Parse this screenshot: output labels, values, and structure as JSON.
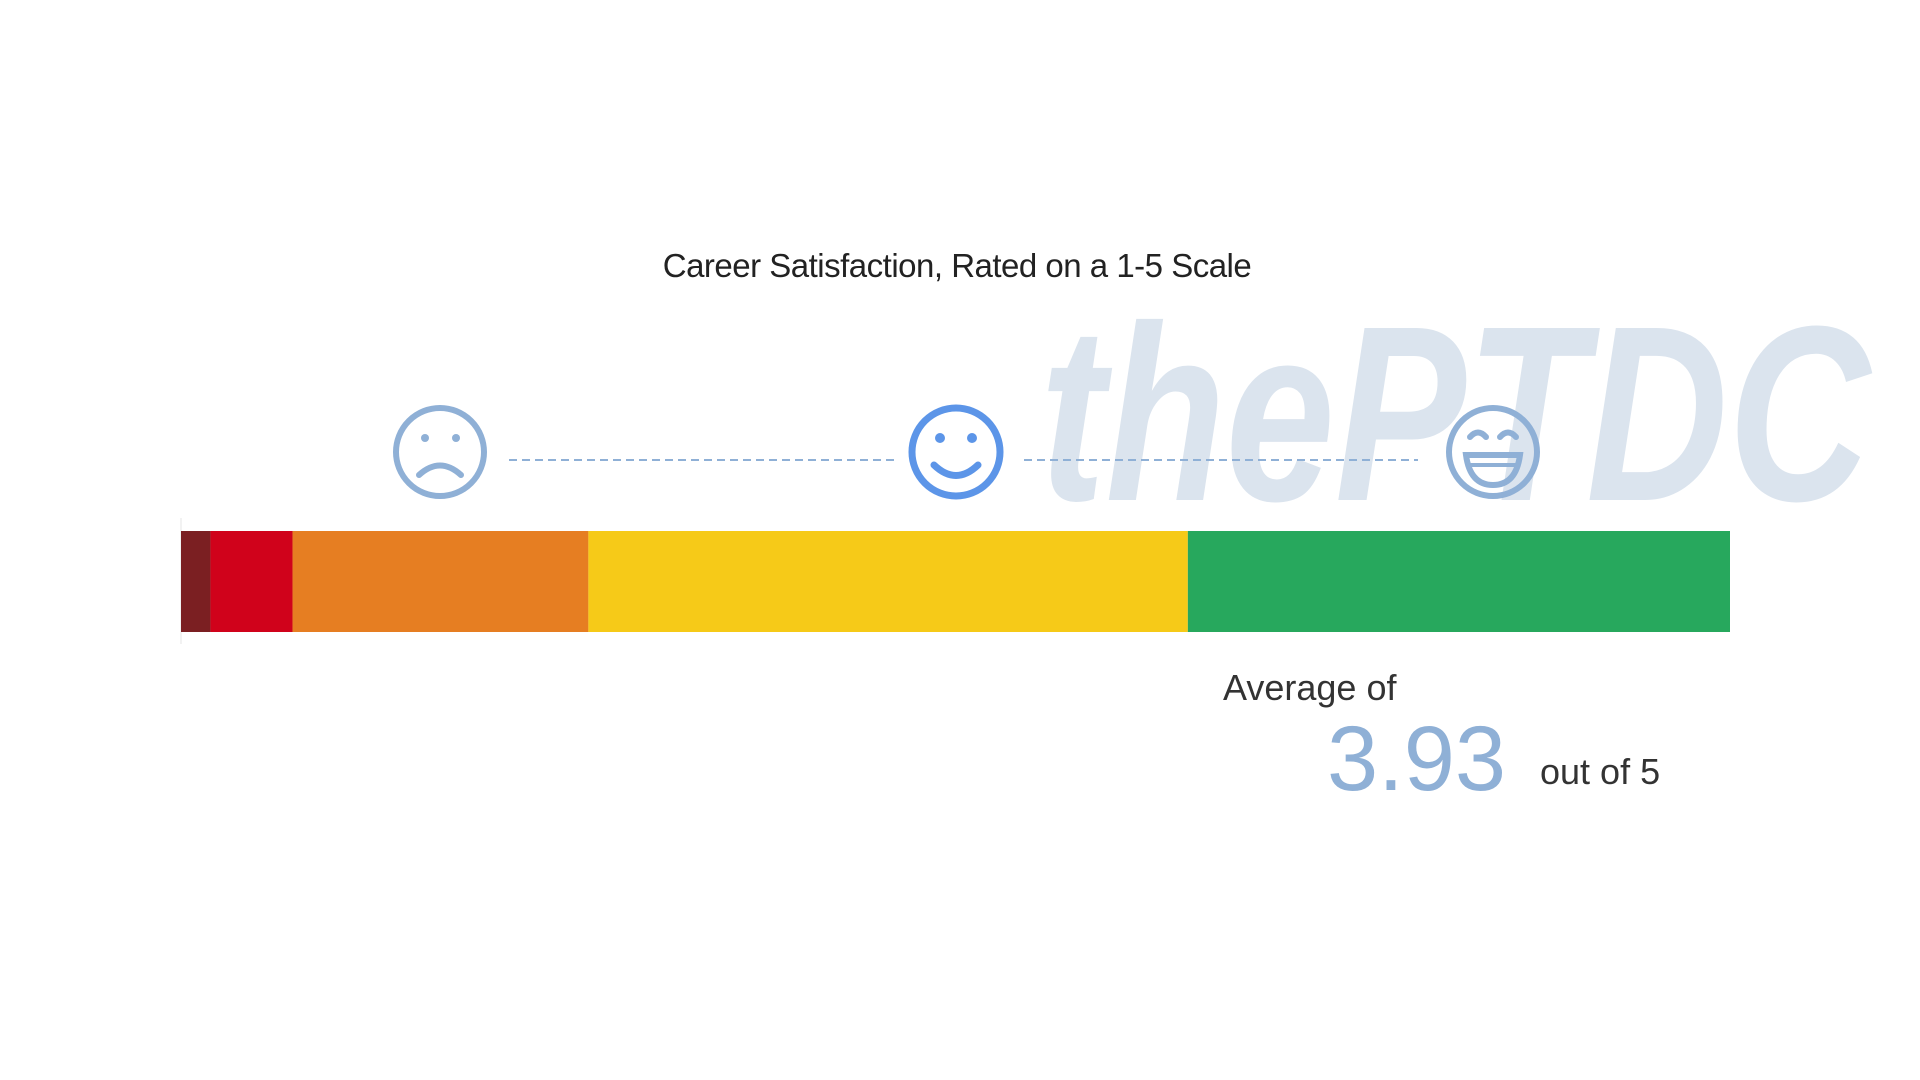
{
  "chart_data": {
    "type": "bar_100",
    "title": "Career Satisfaction, Rated on a 1-5 Scale",
    "watermark": "thePTDC",
    "values": [
      1.9,
      5.3,
      19.1,
      38.7,
      35.0
    ],
    "colors": [
      "#7b1f22",
      "#d0021b",
      "#e67e22",
      "#f6ca18",
      "#27a85d"
    ],
    "xlim": [
      0,
      100
    ],
    "average_label": "Average of",
    "average": 3.93,
    "average_suffix": "out of 5"
  }
}
